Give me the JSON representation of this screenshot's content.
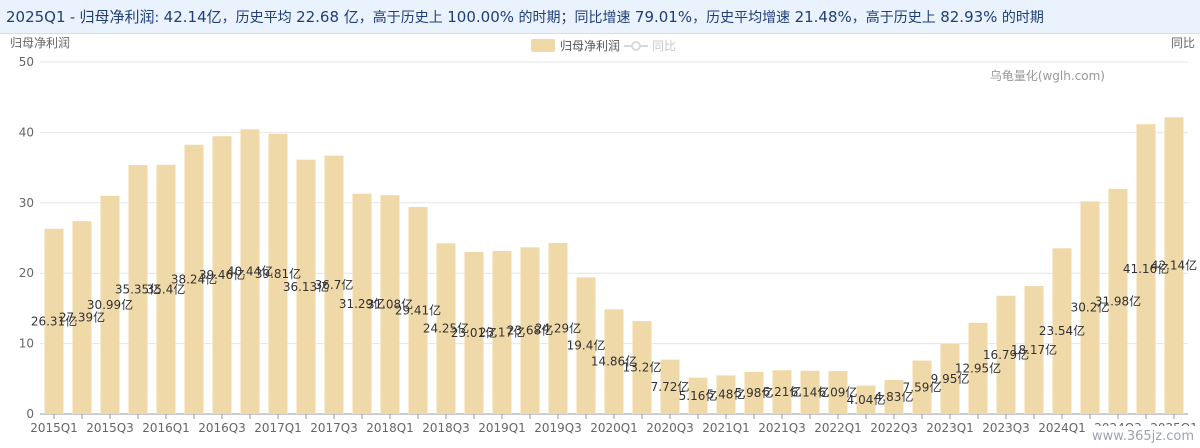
{
  "banner": {
    "quarter": "2025Q1",
    "metric": "归母净利润",
    "value": "42.14亿",
    "hist_avg_label": "历史平均",
    "hist_avg": "22.68 亿",
    "above_label": "高于历史上",
    "above_pct": "100.00%",
    "period_word": "的时期",
    "yoy_label": "同比增速",
    "yoy": "79.01%",
    "yoy_avg_label": "历史平均增速",
    "yoy_avg": "21.48%",
    "yoy_above_label": "高于历史上",
    "yoy_above_pct": "82.93%"
  },
  "watermark_site": "www.365jz.com",
  "chart_data": {
    "type": "bar",
    "ylabel_left": "归母净利润",
    "ylabel_right": "同比",
    "source": "乌龟量化(wglh.com)",
    "legend": [
      {
        "name": "归母净利润",
        "type": "bar",
        "color": "#f0d9a8"
      },
      {
        "name": "同比",
        "type": "line",
        "color": "#d9d9d9"
      }
    ],
    "ylim": [
      0,
      50
    ],
    "yticks": [
      0,
      10,
      20,
      30,
      40,
      50
    ],
    "grid": true,
    "categories": [
      "2015Q1",
      "2015Q2",
      "2015Q3",
      "2015Q4",
      "2016Q1",
      "2016Q2",
      "2016Q3",
      "2016Q4",
      "2017Q1",
      "2017Q2",
      "2017Q3",
      "2017Q4",
      "2018Q1",
      "2018Q2",
      "2018Q3",
      "2018Q4",
      "2019Q1",
      "2019Q2",
      "2019Q3",
      "2019Q4",
      "2020Q1",
      "2020Q2",
      "2020Q3",
      "2020Q4",
      "2021Q1",
      "2021Q2",
      "2021Q3",
      "2021Q4",
      "2022Q1",
      "2022Q2",
      "2022Q3",
      "2022Q4",
      "2023Q1",
      "2023Q2",
      "2023Q3",
      "2023Q4",
      "2024Q1",
      "2024Q2",
      "2024Q3",
      "2024Q4",
      "2025Q1"
    ],
    "x_tick_labels": [
      "2015Q1",
      "2015Q3",
      "2016Q1",
      "2016Q3",
      "2017Q1",
      "2017Q3",
      "2018Q1",
      "2018Q3",
      "2019Q1",
      "2019Q3",
      "2020Q1",
      "2020Q3",
      "2021Q1",
      "2021Q3",
      "2022Q1",
      "2022Q3",
      "2023Q1",
      "2023Q3",
      "2024Q1",
      "2024Q3",
      "2025Q1"
    ],
    "series": [
      {
        "name": "归母净利润",
        "values": [
          26.31,
          27.39,
          30.99,
          35.35,
          35.4,
          38.24,
          39.46,
          40.44,
          39.81,
          36.13,
          36.7,
          31.29,
          31.08,
          29.41,
          24.25,
          23.01,
          23.17,
          23.68,
          24.29,
          19.4,
          14.86,
          13.2,
          7.72,
          5.16,
          5.48,
          5.98,
          6.21,
          6.14,
          6.09,
          4.04,
          4.83,
          7.59,
          9.95,
          12.95,
          16.79,
          18.17,
          23.54,
          30.2,
          31.98,
          41.16,
          42.14
        ],
        "labels": [
          "26.31亿",
          "27.39亿",
          "30.99亿",
          "35.35亿",
          "35.4亿",
          "38.24亿",
          "39.46亿",
          "40.44亿",
          "39.81亿",
          "36.13亿",
          "36.7亿",
          "31.29亿",
          "31.08亿",
          "29.41亿",
          "24.25亿",
          "23.01亿",
          "23.17亿",
          "23.68亿",
          "24.29亿",
          "19.4亿",
          "14.86亿",
          "13.2亿",
          "7.72亿",
          "5.16亿",
          "5.48亿",
          "5.98亿",
          "6.21亿",
          "6.14亿",
          "6.09亿",
          "4.04亿",
          "4.83亿",
          "7.59亿",
          "9.95亿",
          "12.95亿",
          "16.79亿",
          "18.17亿",
          "23.54亿",
          "30.2亿",
          "31.98亿",
          "41.16亿",
          "42.14亿"
        ]
      }
    ]
  }
}
